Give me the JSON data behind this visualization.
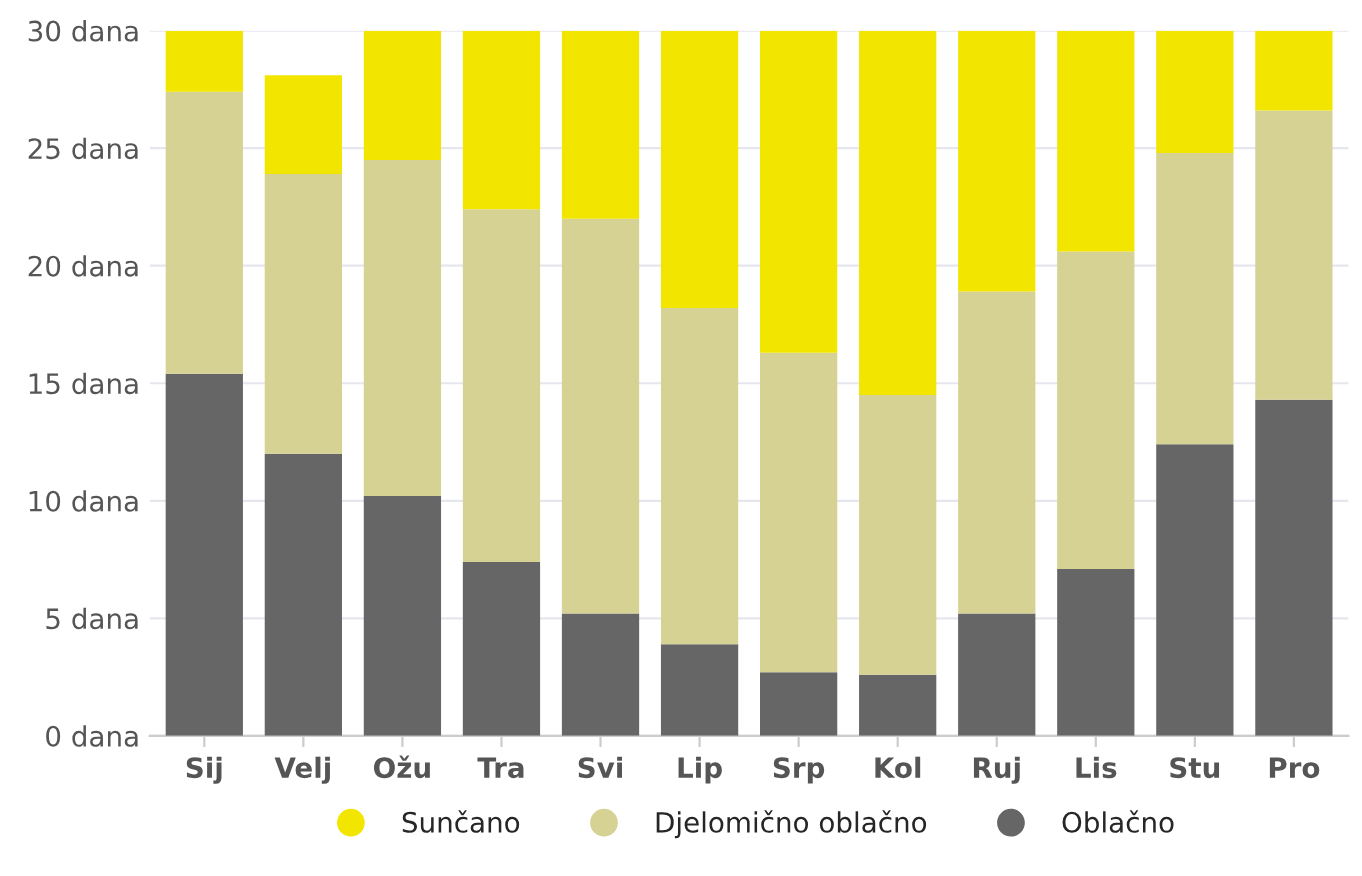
{
  "chart_data": {
    "type": "bar",
    "stacked": true,
    "categories": [
      "Sij",
      "Velj",
      "Ožu",
      "Tra",
      "Svi",
      "Lip",
      "Srp",
      "Kol",
      "Ruj",
      "Lis",
      "Stu",
      "Pro"
    ],
    "series": [
      {
        "name": "Oblačno",
        "color": "#666666",
        "values": [
          15.4,
          12.0,
          10.2,
          7.4,
          5.2,
          3.9,
          2.7,
          2.6,
          5.2,
          7.1,
          12.4,
          14.3
        ]
      },
      {
        "name": "Djelomično oblačno",
        "color": "#d5d294",
        "values": [
          12.0,
          11.9,
          14.3,
          15.0,
          16.8,
          14.3,
          13.6,
          11.9,
          13.7,
          13.5,
          12.4,
          12.3
        ]
      },
      {
        "name": "Sunčano",
        "color": "#f2e600",
        "values": [
          2.6,
          4.2,
          5.5,
          7.6,
          8.0,
          11.8,
          13.7,
          15.5,
          11.1,
          9.4,
          5.2,
          3.4
        ]
      }
    ],
    "ylim": [
      0,
      30
    ],
    "yticks": [
      {
        "value": 0,
        "label": "0 dana"
      },
      {
        "value": 5,
        "label": "5 dana"
      },
      {
        "value": 10,
        "label": "10 dana"
      },
      {
        "value": 15,
        "label": "15 dana"
      },
      {
        "value": 20,
        "label": "20 dana"
      },
      {
        "value": 25,
        "label": "25 dana"
      },
      {
        "value": 30,
        "label": "30 dana"
      }
    ],
    "grid": "y",
    "legend": "bottom"
  }
}
